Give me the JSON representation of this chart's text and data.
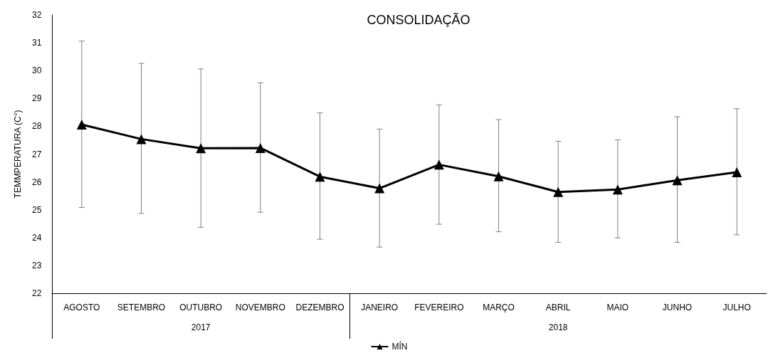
{
  "chart_data": {
    "type": "line",
    "title": "CONSOLIDAÇÃO",
    "ylabel": "TEMMPERATURA (C°)",
    "categories": [
      "AGOSTO",
      "SETEMBRO",
      "OUTUBRO",
      "NOVEMBRO",
      "DEZEMBRO",
      "JANEIRO",
      "FEVEREIRO",
      "MARÇO",
      "ABRIL",
      "MAIO",
      "JUNHO",
      "JULHO"
    ],
    "series": [
      {
        "name": "MÍN",
        "color": "#000000",
        "marker": "triangle",
        "values": [
          28.06,
          27.54,
          27.21,
          27.22,
          26.19,
          25.77,
          26.62,
          26.2,
          25.64,
          25.73,
          26.06,
          26.35
        ],
        "errors": [
          [
            25.08,
            31.06
          ],
          [
            24.87,
            30.26
          ],
          [
            24.37,
            30.06
          ],
          [
            24.91,
            29.56
          ],
          [
            23.94,
            28.48
          ],
          [
            23.66,
            27.9
          ],
          [
            24.48,
            28.77
          ],
          [
            24.21,
            28.24
          ],
          [
            23.83,
            27.46
          ],
          [
            23.99,
            27.51
          ],
          [
            23.83,
            28.34
          ],
          [
            24.1,
            28.63
          ]
        ]
      }
    ],
    "ylim": [
      22,
      32
    ],
    "yticks": [
      22,
      23,
      24,
      25,
      26,
      27,
      28,
      29,
      30,
      31,
      32
    ],
    "grid": false,
    "legend": "bottom",
    "annotations": [
      "2017",
      "2018"
    ]
  }
}
